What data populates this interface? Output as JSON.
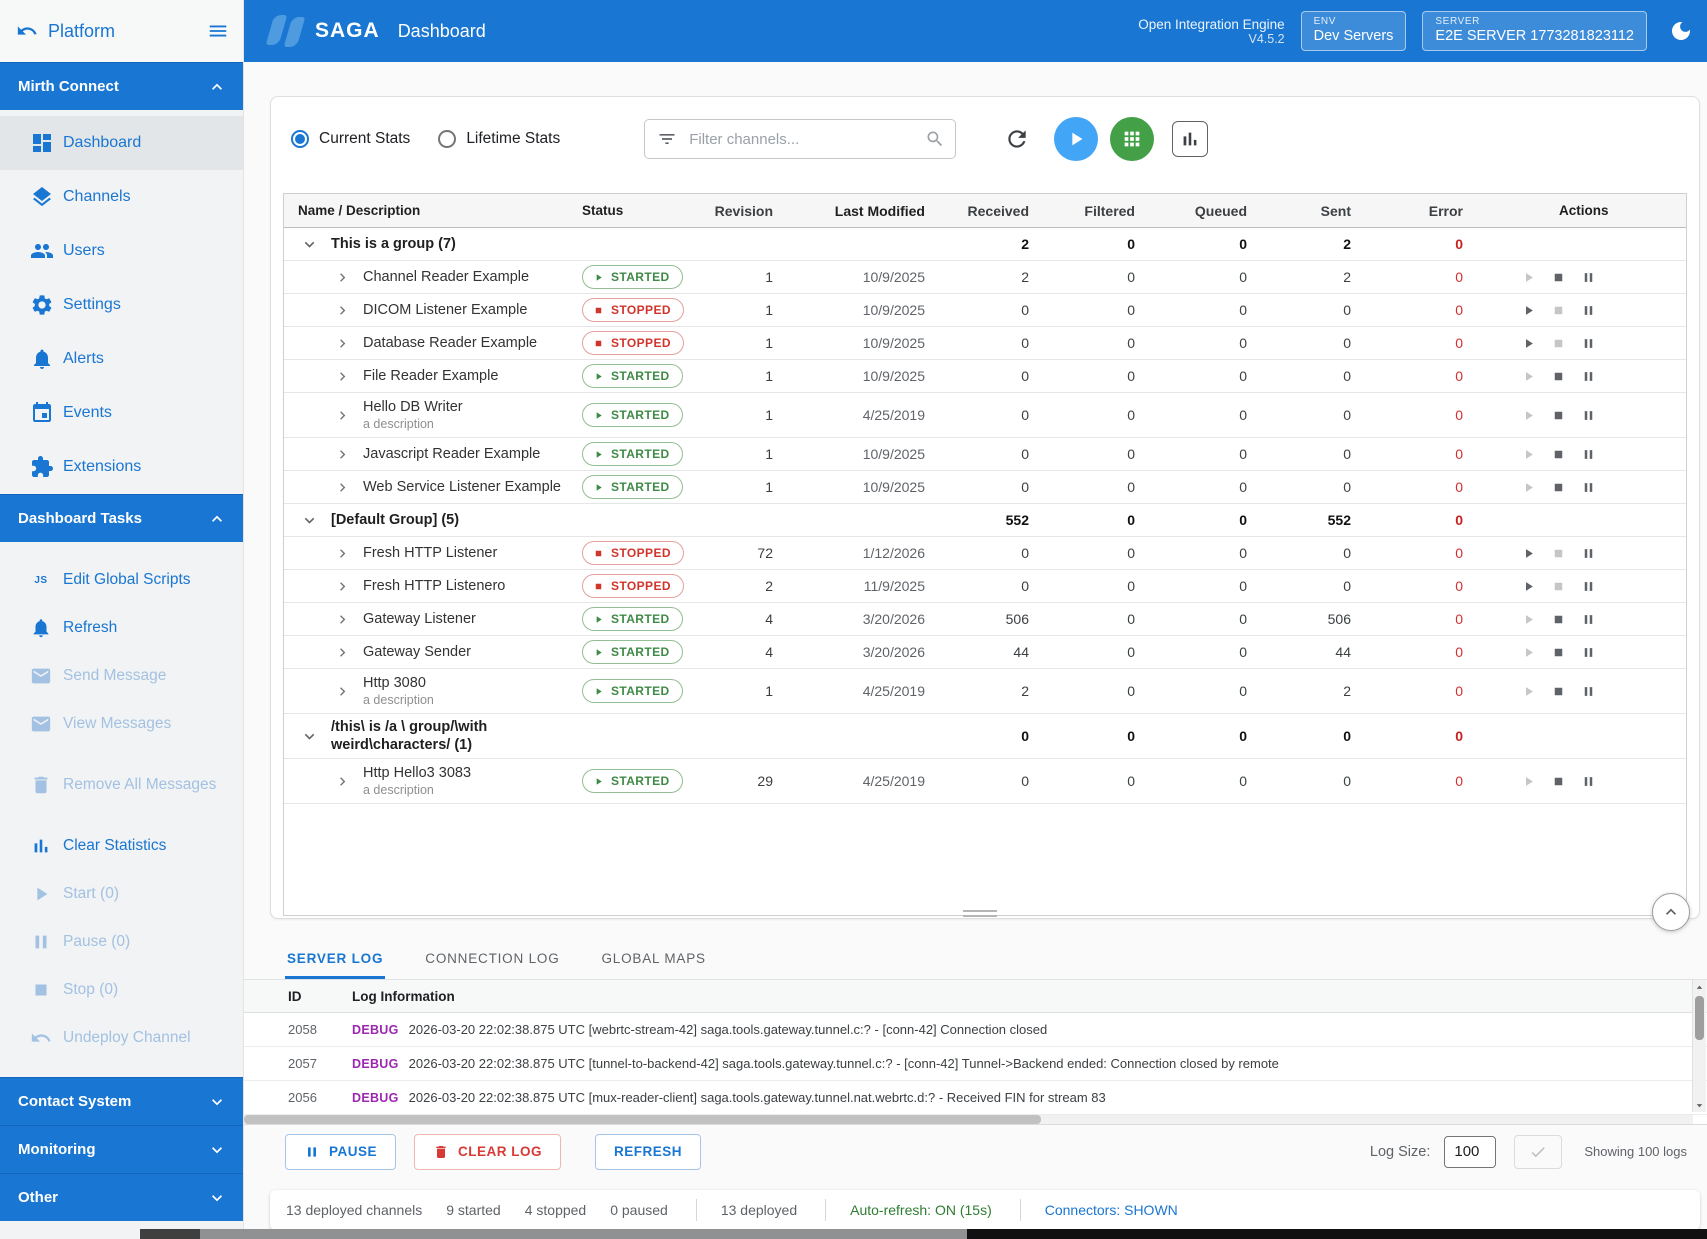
{
  "colors": {
    "accent": "#1976d2",
    "started_green": "#3f8a46",
    "stopped_red": "#d0342c",
    "debug_purple": "#9c27b0",
    "error_red": "#d32f2f",
    "autorefresh_green": "#2e7d32"
  },
  "sidebar": {
    "platform": {
      "label": "Platform",
      "back_icon": "undo-icon",
      "menu_icon": "menu-icon"
    },
    "mirth": {
      "title": "Mirth Connect",
      "collapse_icon": "chevron-up-icon",
      "items": [
        {
          "label": "Dashboard",
          "icon": "dashboard-icon",
          "active": true,
          "disabled": false
        },
        {
          "label": "Channels",
          "icon": "layers-icon",
          "active": false,
          "disabled": false
        },
        {
          "label": "Users",
          "icon": "people-icon",
          "active": false,
          "disabled": false
        },
        {
          "label": "Settings",
          "icon": "gear-icon",
          "active": false,
          "disabled": false
        },
        {
          "label": "Alerts",
          "icon": "bell-icon",
          "active": false,
          "disabled": false
        },
        {
          "label": "Events",
          "icon": "calendar-icon",
          "active": false,
          "disabled": false
        },
        {
          "label": "Extensions",
          "icon": "puzzle-icon",
          "active": false,
          "disabled": false
        }
      ]
    },
    "tasks": {
      "title": "Dashboard Tasks",
      "collapse_icon": "chevron-up-icon",
      "items": [
        {
          "label": "Edit Global Scripts",
          "icon": "js-icon",
          "disabled": false
        },
        {
          "label": "Refresh",
          "icon": "bell-icon",
          "disabled": false
        },
        {
          "label": "Send Message",
          "icon": "email-icon",
          "disabled": true
        },
        {
          "label": "View Messages",
          "icon": "email-icon",
          "disabled": true
        },
        {
          "label": "Remove All Messages",
          "icon": "trash-icon",
          "disabled": true,
          "tall": true
        },
        {
          "label": "Clear Statistics",
          "icon": "bar-chart-icon",
          "disabled": false
        },
        {
          "label": "Start (0)",
          "icon": "play-icon",
          "disabled": true
        },
        {
          "label": "Pause (0)",
          "icon": "pause-icon",
          "disabled": true
        },
        {
          "label": "Stop (0)",
          "icon": "stop-icon",
          "disabled": true
        },
        {
          "label": "Undeploy Channel",
          "icon": "undo-icon",
          "disabled": true
        }
      ]
    },
    "bottom_sections": [
      {
        "label": "Contact System",
        "icon": "chevron-down-icon"
      },
      {
        "label": "Monitoring",
        "icon": "chevron-down-icon"
      },
      {
        "label": "Other",
        "icon": "chevron-down-icon"
      }
    ]
  },
  "header": {
    "brand": "SAGA",
    "title": "Dashboard",
    "engine_name": "Open Integration Engine",
    "engine_version": "V4.5.2",
    "env": {
      "label": "ENV",
      "value": "Dev Servers"
    },
    "server": {
      "label": "SERVER",
      "value": "E2E SERVER 1773281823112"
    },
    "theme_icon": "moon-icon"
  },
  "controls": {
    "radio_current": "Current Stats",
    "radio_lifetime": "Lifetime Stats",
    "selected_radio": "Current Stats",
    "filter_placeholder": "Filter channels..."
  },
  "table": {
    "columns": [
      "Name / Description",
      "Status",
      "Revision",
      "Last Modified",
      "Received",
      "Filtered",
      "Queued",
      "Sent",
      "Error",
      "Actions"
    ],
    "groups": [
      {
        "label": "This is a group (7)",
        "totals": {
          "received": "2",
          "filtered": "0",
          "queued": "0",
          "sent": "2",
          "error": "0"
        },
        "channels": [
          {
            "name": "Channel Reader Example",
            "state": "STARTED",
            "revision": "1",
            "last_modified": "10/9/2025",
            "received": "2",
            "filtered": "0",
            "queued": "0",
            "sent": "2",
            "error": "0"
          },
          {
            "name": "DICOM Listener Example",
            "state": "STOPPED",
            "revision": "1",
            "last_modified": "10/9/2025",
            "received": "0",
            "filtered": "0",
            "queued": "0",
            "sent": "0",
            "error": "0"
          },
          {
            "name": "Database Reader Example",
            "state": "STOPPED",
            "revision": "1",
            "last_modified": "10/9/2025",
            "received": "0",
            "filtered": "0",
            "queued": "0",
            "sent": "0",
            "error": "0"
          },
          {
            "name": "File Reader Example",
            "state": "STARTED",
            "revision": "1",
            "last_modified": "10/9/2025",
            "received": "0",
            "filtered": "0",
            "queued": "0",
            "sent": "0",
            "error": "0"
          },
          {
            "name": "Hello DB Writer",
            "description": "a description",
            "state": "STARTED",
            "revision": "1",
            "last_modified": "4/25/2019",
            "received": "0",
            "filtered": "0",
            "queued": "0",
            "sent": "0",
            "error": "0"
          },
          {
            "name": "Javascript Reader Example",
            "state": "STARTED",
            "revision": "1",
            "last_modified": "10/9/2025",
            "received": "0",
            "filtered": "0",
            "queued": "0",
            "sent": "0",
            "error": "0"
          },
          {
            "name": "Web Service Listener Example",
            "state": "STARTED",
            "revision": "1",
            "last_modified": "10/9/2025",
            "received": "0",
            "filtered": "0",
            "queued": "0",
            "sent": "0",
            "error": "0"
          }
        ]
      },
      {
        "label": "[Default Group] (5)",
        "totals": {
          "received": "552",
          "filtered": "0",
          "queued": "0",
          "sent": "552",
          "error": "0"
        },
        "channels": [
          {
            "name": "Fresh HTTP Listener",
            "state": "STOPPED",
            "revision": "72",
            "last_modified": "1/12/2026",
            "received": "0",
            "filtered": "0",
            "queued": "0",
            "sent": "0",
            "error": "0"
          },
          {
            "name": "Fresh HTTP Listenero",
            "state": "STOPPED",
            "revision": "2",
            "last_modified": "11/9/2025",
            "received": "0",
            "filtered": "0",
            "queued": "0",
            "sent": "0",
            "error": "0"
          },
          {
            "name": "Gateway Listener",
            "state": "STARTED",
            "revision": "4",
            "last_modified": "3/20/2026",
            "received": "506",
            "filtered": "0",
            "queued": "0",
            "sent": "506",
            "error": "0"
          },
          {
            "name": "Gateway Sender",
            "state": "STARTED",
            "revision": "4",
            "last_modified": "3/20/2026",
            "received": "44",
            "filtered": "0",
            "queued": "0",
            "sent": "44",
            "error": "0"
          },
          {
            "name": "Http 3080",
            "description": "a description",
            "state": "STARTED",
            "revision": "1",
            "last_modified": "4/25/2019",
            "received": "2",
            "filtered": "0",
            "queued": "0",
            "sent": "2",
            "error": "0"
          }
        ]
      },
      {
        "label": "/this\\ is /a \\ group/\\with weird\\characters/ (1)",
        "tall": true,
        "totals": {
          "received": "0",
          "filtered": "0",
          "queued": "0",
          "sent": "0",
          "error": "0"
        },
        "channels": [
          {
            "name": "Http Hello3 3083",
            "description": "a description",
            "state": "STARTED",
            "revision": "29",
            "last_modified": "4/25/2019",
            "received": "0",
            "filtered": "0",
            "queued": "0",
            "sent": "0",
            "error": "0"
          }
        ]
      }
    ]
  },
  "logs": {
    "tabs": [
      "SERVER LOG",
      "CONNECTION LOG",
      "GLOBAL MAPS"
    ],
    "active_tab": "SERVER LOG",
    "columns": {
      "id": "ID",
      "info": "Log Information"
    },
    "rows": [
      {
        "id": "2058",
        "level": "DEBUG",
        "message": "2026-03-20 22:02:38.875 UTC [webrtc-stream-42] saga.tools.gateway.tunnel.c:? - [conn-42] Connection closed"
      },
      {
        "id": "2057",
        "level": "DEBUG",
        "message": "2026-03-20 22:02:38.875 UTC [tunnel-to-backend-42] saga.tools.gateway.tunnel.c:? - [conn-42] Tunnel->Backend ended: Connection closed by remote"
      },
      {
        "id": "2056",
        "level": "DEBUG",
        "message": "2026-03-20 22:02:38.875 UTC [mux-reader-client] saga.tools.gateway.tunnel.nat.webrtc.d:? - Received FIN for stream 83"
      }
    ],
    "buttons": {
      "pause": "PAUSE",
      "clear": "CLEAR LOG",
      "refresh": "REFRESH"
    },
    "log_size": {
      "label": "Log Size:",
      "value": "100"
    },
    "showing": "Showing 100 logs"
  },
  "statusbar": {
    "counts": [
      "13 deployed channels",
      "9 started",
      "4 stopped",
      "0 paused"
    ],
    "deployed": "13 deployed",
    "autorefresh": "Auto-refresh: ON (15s)",
    "connectors": "Connectors: SHOWN"
  }
}
